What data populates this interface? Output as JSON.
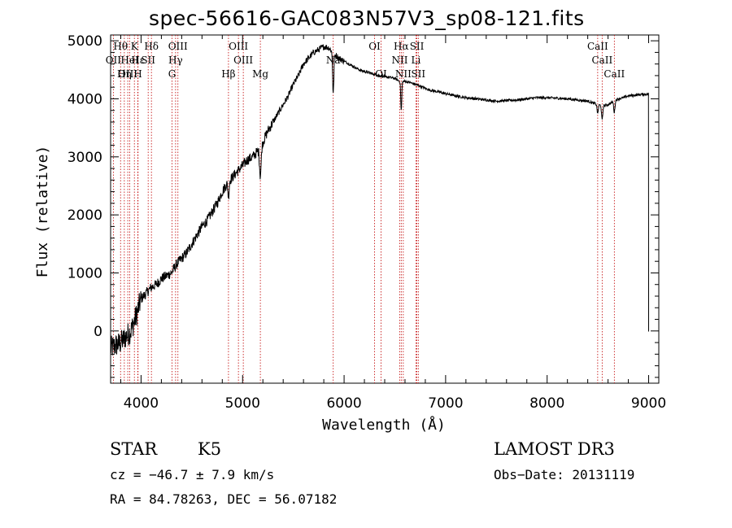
{
  "chart_data": {
    "type": "line",
    "title": "spec-56616-GAC083N57V3_sp08-121.fits",
    "xlabel": "Wavelength (Å)",
    "ylabel": "Flux (relative)",
    "xlim": [
      3700,
      9100
    ],
    "ylim": [
      -900,
      5100
    ],
    "xticks": [
      4000,
      5000,
      6000,
      7000,
      8000,
      9000
    ],
    "yticks": [
      0,
      1000,
      2000,
      3000,
      4000,
      5000
    ],
    "series": [
      {
        "name": "spectrum",
        "x": [
          3700,
          3750,
          3800,
          3850,
          3900,
          3950,
          4000,
          4050,
          4100,
          4150,
          4200,
          4250,
          4300,
          4350,
          4400,
          4450,
          4500,
          4550,
          4600,
          4650,
          4700,
          4750,
          4800,
          4850,
          4900,
          4950,
          5000,
          5050,
          5100,
          5150,
          5200,
          5250,
          5300,
          5350,
          5400,
          5450,
          5500,
          5550,
          5600,
          5650,
          5700,
          5750,
          5800,
          5850,
          5900,
          5950,
          6000,
          6050,
          6100,
          6150,
          6200,
          6250,
          6300,
          6350,
          6400,
          6450,
          6500,
          6550,
          6600,
          6650,
          6700,
          6750,
          6800,
          6850,
          6900,
          6950,
          7000,
          7100,
          7200,
          7300,
          7400,
          7500,
          7600,
          7700,
          7800,
          7900,
          8000,
          8100,
          8200,
          8300,
          8400,
          8450,
          8500,
          8550,
          8600,
          8650,
          8700,
          8750,
          8800,
          8850,
          8900,
          8950,
          9000
        ],
        "values": [
          -300,
          -250,
          -200,
          -100,
          0,
          250,
          550,
          650,
          750,
          800,
          900,
          950,
          1000,
          1150,
          1250,
          1350,
          1500,
          1650,
          1800,
          1900,
          2050,
          2200,
          2400,
          2550,
          2650,
          2750,
          2850,
          2950,
          3000,
          3100,
          3250,
          3450,
          3600,
          3750,
          3900,
          4050,
          4250,
          4400,
          4600,
          4700,
          4800,
          4850,
          4900,
          4880,
          4780,
          4700,
          4650,
          4600,
          4550,
          4500,
          4470,
          4450,
          4420,
          4400,
          4380,
          4370,
          4350,
          4300,
          4300,
          4280,
          4250,
          4220,
          4180,
          4150,
          4130,
          4110,
          4090,
          4050,
          4020,
          4000,
          3980,
          3960,
          3970,
          3980,
          4000,
          4020,
          4020,
          4010,
          4000,
          3980,
          3960,
          3930,
          3900,
          3880,
          3900,
          3950,
          4000,
          4020,
          4050,
          4060,
          4070,
          4080,
          4080
        ]
      }
    ],
    "lines": [
      {
        "name": "Hθ",
        "wl": 3798,
        "row": 0
      },
      {
        "name": "OII",
        "wl": 3727,
        "row": 1
      },
      {
        "name": "OIII",
        "wl": 3869,
        "row": 2
      },
      {
        "name": "Hε",
        "wl": 3970,
        "row": 1
      },
      {
        "name": "Hη",
        "wl": 3835,
        "row": 2
      },
      {
        "name": "K",
        "wl": 3934,
        "row": 0
      },
      {
        "name": "HeI",
        "wl": 3889,
        "row": 1
      },
      {
        "name": "SII",
        "wl": 4070,
        "row": 1
      },
      {
        "name": "H",
        "wl": 3968,
        "row": 2
      },
      {
        "name": "Hδ",
        "wl": 4102,
        "row": 0
      },
      {
        "name": "OIII",
        "wl": 4363,
        "row": 0
      },
      {
        "name": "Hγ",
        "wl": 4340,
        "row": 1
      },
      {
        "name": "G",
        "wl": 4305,
        "row": 2
      },
      {
        "name": "OIII",
        "wl": 4959,
        "row": 0
      },
      {
        "name": "OIII",
        "wl": 5007,
        "row": 1
      },
      {
        "name": "Hβ",
        "wl": 4861,
        "row": 2
      },
      {
        "name": "Mg",
        "wl": 5175,
        "row": 2
      },
      {
        "name": "Na",
        "wl": 5893,
        "row": 1
      },
      {
        "name": "OI",
        "wl": 6300,
        "row": 0
      },
      {
        "name": "OI",
        "wl": 6364,
        "row": 2
      },
      {
        "name": "Hα",
        "wl": 6563,
        "row": 0
      },
      {
        "name": "NII",
        "wl": 6548,
        "row": 1
      },
      {
        "name": "NII",
        "wl": 6583,
        "row": 2
      },
      {
        "name": "SII",
        "wl": 6717,
        "row": 0
      },
      {
        "name": "Li",
        "wl": 6708,
        "row": 1
      },
      {
        "name": "SII",
        "wl": 6731,
        "row": 2
      },
      {
        "name": "CaII",
        "wl": 8498,
        "row": 0
      },
      {
        "name": "CaII",
        "wl": 8542,
        "row": 1
      },
      {
        "name": "CaII",
        "wl": 8662,
        "row": 2
      }
    ]
  },
  "info": {
    "class_label": "STAR",
    "subclass": "K5",
    "survey": "LAMOST DR3",
    "cz": "cz = −46.7 ± 7.9 km/s",
    "obs_date": "Obs−Date: 20131119",
    "coords": "RA =  84.78263, DEC =  56.07182"
  }
}
